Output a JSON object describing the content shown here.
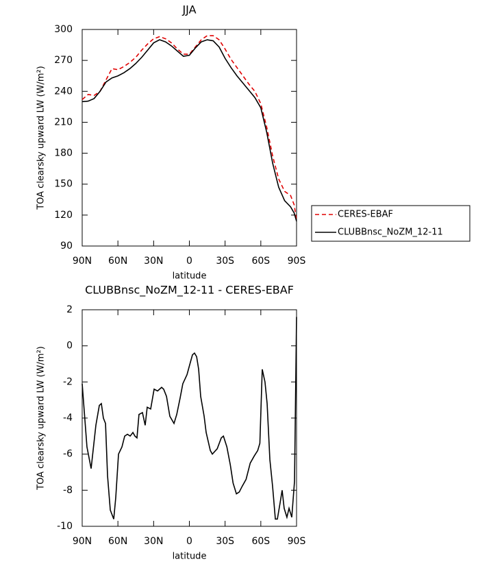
{
  "chart_data": [
    {
      "type": "line",
      "title": "JJA",
      "xlabel": "latitude",
      "ylabel": "TOA clearsky upward LW (W/m²)",
      "x": [
        90,
        85,
        80,
        75,
        70,
        65,
        60,
        55,
        50,
        45,
        40,
        35,
        30,
        25,
        20,
        15,
        10,
        5,
        0,
        -5,
        -10,
        -15,
        -20,
        -25,
        -30,
        -35,
        -40,
        -45,
        -50,
        -55,
        -60,
        -65,
        -70,
        -75,
        -80,
        -85,
        -88,
        -90
      ],
      "series": [
        {
          "name": "CERES-EBAF",
          "color": "#e00000",
          "dashed": true,
          "values": [
            232,
            237,
            236,
            240,
            251,
            262,
            261,
            264,
            268,
            273,
            280,
            286,
            291,
            293,
            291,
            287,
            281,
            276,
            276,
            283,
            290,
            294,
            294,
            290,
            281,
            271,
            263,
            255,
            247,
            240,
            228,
            205,
            177,
            155,
            143,
            139,
            130,
            115
          ]
        },
        {
          "name": "CLUBBnsc_NoZM_12-11",
          "color": "#000000",
          "dashed": false,
          "values": [
            230,
            230.5,
            233,
            240,
            249,
            253,
            255,
            258,
            262,
            267,
            273,
            280,
            287,
            290,
            288,
            284,
            279,
            274,
            275,
            282,
            288,
            290,
            289,
            283,
            272,
            263,
            255,
            248,
            241,
            234,
            224,
            200,
            170,
            147,
            134,
            128,
            122,
            114
          ]
        }
      ],
      "xlim": [
        90,
        -90
      ],
      "xticks": [
        {
          "value": 90,
          "label": "90N"
        },
        {
          "value": 60,
          "label": "60N"
        },
        {
          "value": 30,
          "label": "30N"
        },
        0,
        {
          "value": -30,
          "label": "30S"
        },
        {
          "value": -60,
          "label": "60S"
        },
        {
          "value": -90,
          "label": "90S"
        }
      ],
      "ylim": [
        90,
        300
      ],
      "yticks": [
        90,
        120,
        150,
        180,
        210,
        240,
        270,
        300
      ],
      "legend": "right"
    },
    {
      "type": "line",
      "title": "CLUBBnsc_NoZM_12-11 - CERES-EBAF",
      "xlabel": "latitude",
      "ylabel": "TOA clearsky upward LW (W/m²)",
      "x": [
        90,
        86,
        82.5,
        78.5,
        75.6,
        73.9,
        72.2,
        70.4,
        68.7,
        66.4,
        63.5,
        61.8,
        59.5,
        56.6,
        54.3,
        52,
        49.7,
        47.4,
        45.7,
        44,
        42.3,
        39.4,
        37.1,
        35.4,
        32.5,
        29.6,
        26.7,
        23.3,
        21.6,
        19.2,
        16.4,
        12.9,
        10.6,
        7.8,
        5.5,
        2,
        -0.9,
        -2.6,
        -4.3,
        -6.1,
        -7.8,
        -9.5,
        -12.4,
        -14.1,
        -17.6,
        -19.3,
        -23.4,
        -26.8,
        -28.6,
        -31.5,
        -34.4,
        -36.7,
        -39.5,
        -41.9,
        -44.2,
        -47.6,
        -51.1,
        -54.5,
        -57.4,
        -59.2,
        -61.2,
        -63.5,
        -65.3,
        -67.6,
        -69.9,
        -72.2,
        -73.9,
        -76.2,
        -77.9,
        -79.6,
        -81.9,
        -83.7,
        -86,
        -88.3,
        -90
      ],
      "series": [
        {
          "color": "#000000",
          "dashed": false,
          "values": [
            -2.1,
            -5.6,
            -6.8,
            -4.4,
            -3.3,
            -3.2,
            -4.0,
            -4.3,
            -7.2,
            -9.1,
            -9.6,
            -8.4,
            -6.0,
            -5.6,
            -5.0,
            -4.9,
            -5.0,
            -4.8,
            -5.0,
            -5.1,
            -3.8,
            -3.7,
            -4.4,
            -3.4,
            -3.5,
            -2.4,
            -2.5,
            -2.3,
            -2.4,
            -2.8,
            -3.9,
            -4.3,
            -3.8,
            -2.9,
            -2.1,
            -1.6,
            -0.9,
            -0.5,
            -0.4,
            -0.6,
            -1.3,
            -2.8,
            -3.9,
            -4.8,
            -5.8,
            -6.0,
            -5.7,
            -5.1,
            -5.0,
            -5.6,
            -6.6,
            -7.6,
            -8.2,
            -8.1,
            -7.8,
            -7.4,
            -6.5,
            -6.1,
            -5.8,
            -5.4,
            -1.3,
            -2.0,
            -3.2,
            -6.3,
            -7.8,
            -9.6,
            -9.6,
            -8.7,
            -8.0,
            -9.0,
            -9.5,
            -9.0,
            -9.5,
            -7.5,
            1.6
          ]
        }
      ],
      "xlim": [
        90,
        -90
      ],
      "xticks": [
        {
          "value": 90,
          "label": "90N"
        },
        {
          "value": 60,
          "label": "60N"
        },
        {
          "value": 30,
          "label": "30N"
        },
        0,
        {
          "value": -30,
          "label": "30S"
        },
        {
          "value": -60,
          "label": "60S"
        },
        {
          "value": -90,
          "label": "90S"
        }
      ],
      "ylim": [
        -10,
        2
      ],
      "yticks": [
        -10,
        -8,
        -6,
        -4,
        -2,
        0,
        2
      ]
    }
  ]
}
